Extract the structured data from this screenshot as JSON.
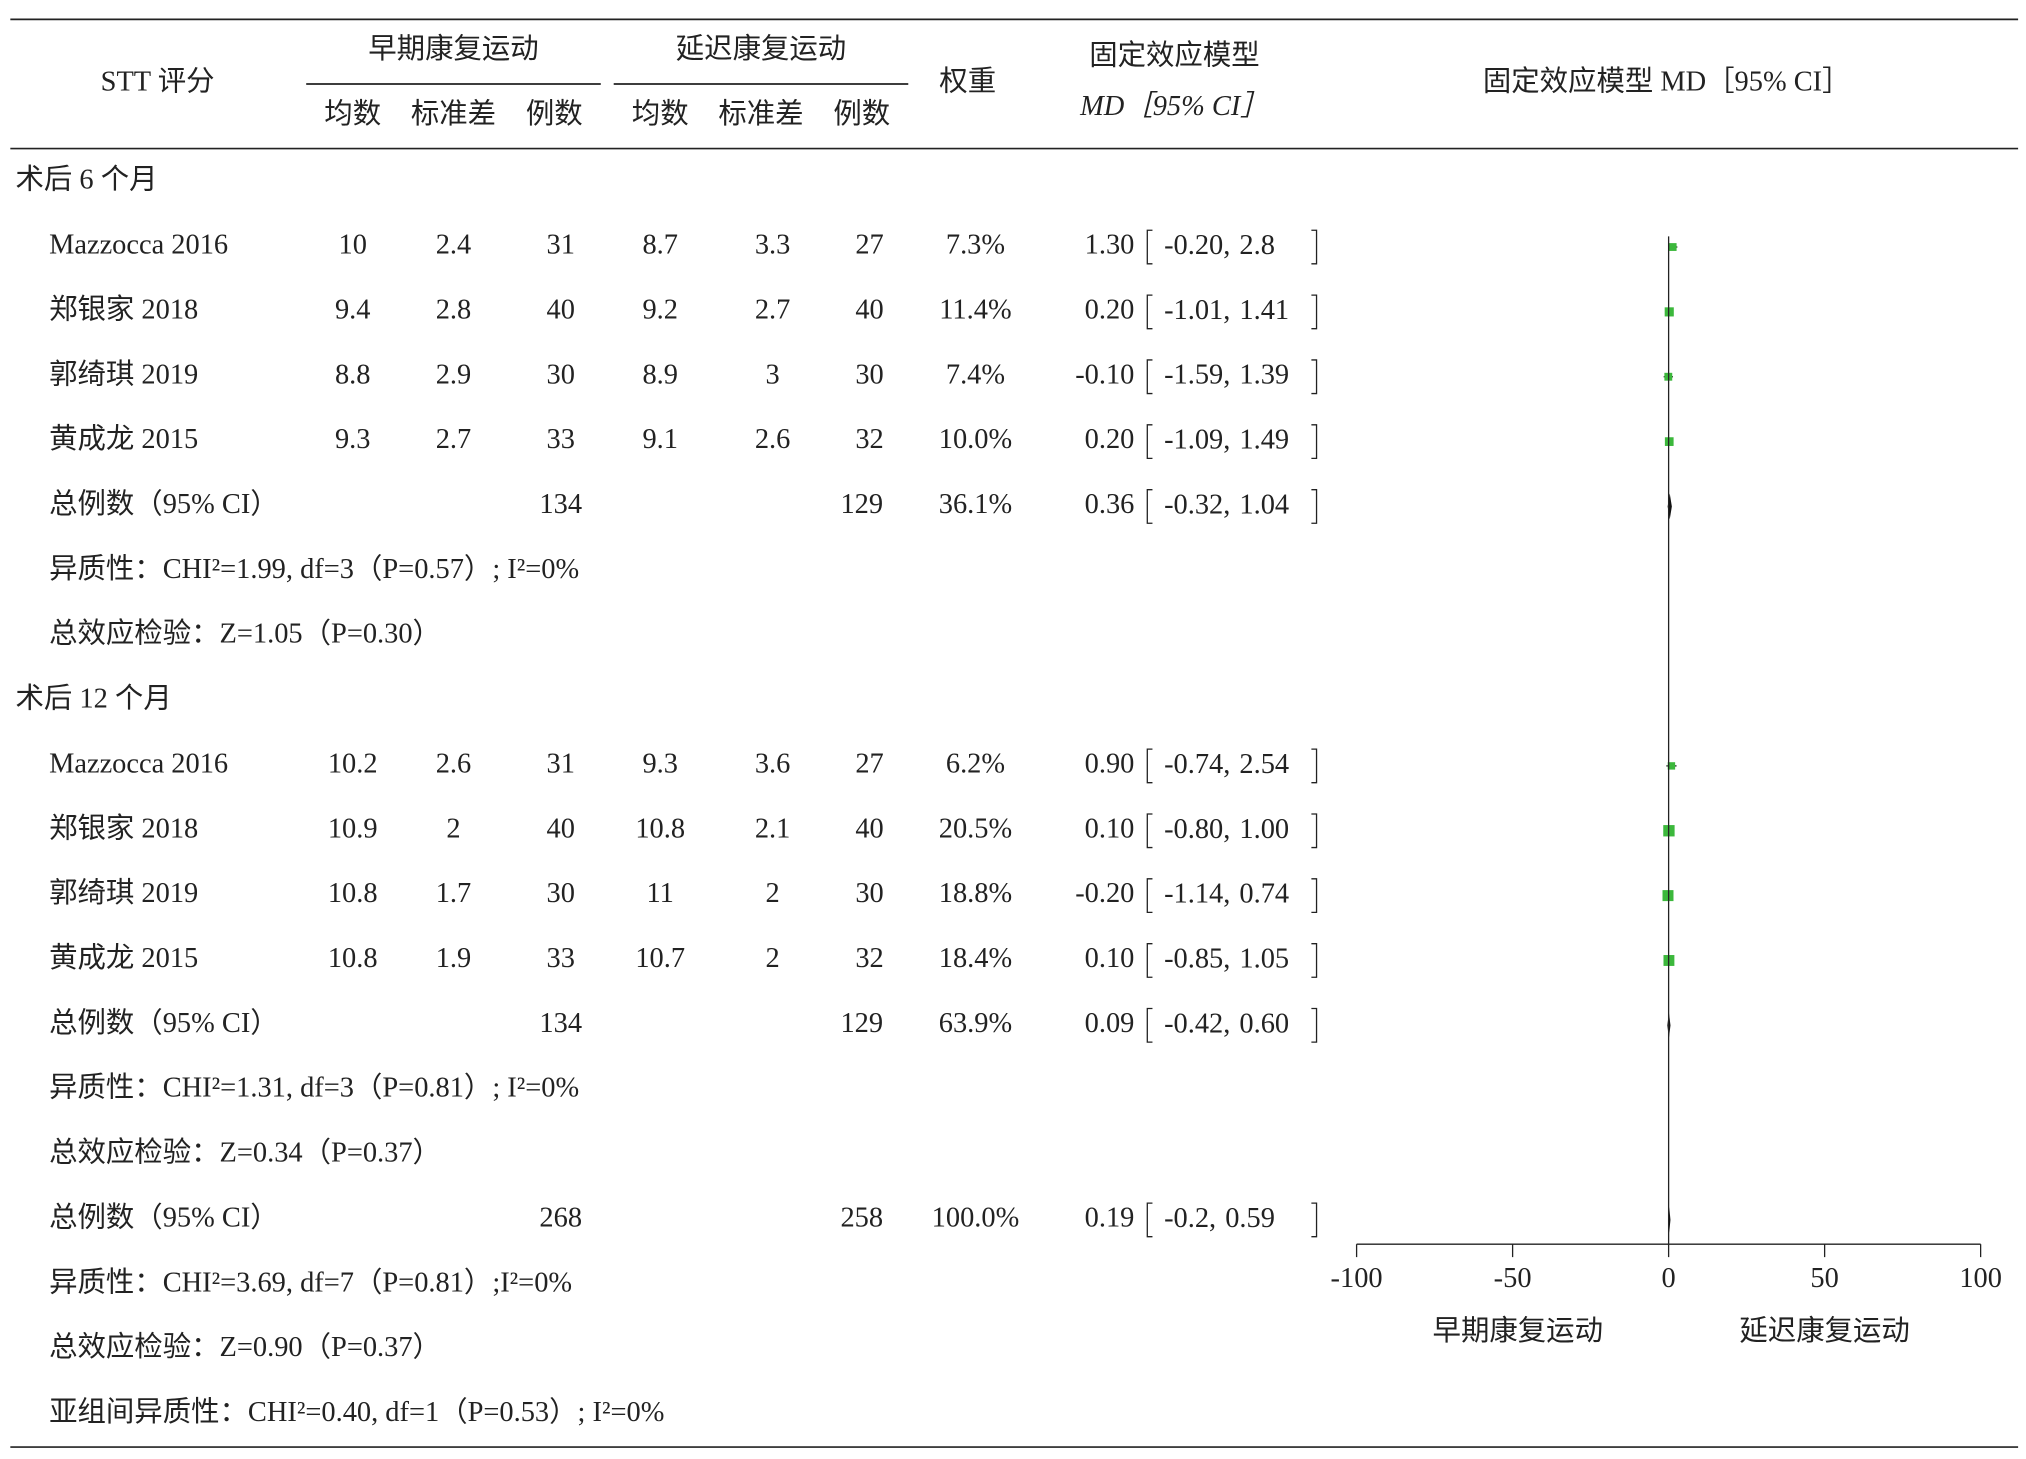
{
  "header": {
    "study": "STT 评分",
    "early": "早期康复运动",
    "late": "延迟康复运动",
    "columns": [
      "均数",
      "标准差",
      "例数"
    ],
    "weight": "权重",
    "model": "固定效应模型",
    "model_sub": "MD［95% CI］",
    "plot_title": "固定效应模型 MD［95% CI］"
  },
  "groups": [
    {
      "label": "术后 6 个月",
      "studies": [
        {
          "name": "Mazzocca 2016",
          "early": [
            10,
            2.4,
            31
          ],
          "late": [
            8.7,
            3.3,
            27
          ],
          "weight": {
            "value": 7.3,
            "label": "7.3%"
          },
          "md": {
            "value": 1.3,
            "label": "1.30"
          },
          "ci": [
            {
              "value": -0.2,
              "label": "-0.20,"
            },
            2.8
          ]
        },
        {
          "name": "郑银家 2018",
          "early": [
            9.4,
            2.8,
            40
          ],
          "late": [
            9.2,
            2.7,
            40
          ],
          "weight": {
            "value": 11.4,
            "label": "11.4%"
          },
          "md": {
            "value": 0.2,
            "label": "0.20"
          },
          "ci": [
            {
              "value": -1.01,
              "label": "-1.01,"
            },
            1.41
          ]
        },
        {
          "name": "郭绮琪 2019",
          "early": [
            8.8,
            2.9,
            30
          ],
          "late": [
            8.9,
            3,
            30
          ],
          "weight": {
            "value": 7.4,
            "label": "7.4%"
          },
          "md": {
            "value": -0.1,
            "label": "-0.10"
          },
          "ci": [
            {
              "value": -1.59,
              "label": "-1.59,"
            },
            1.39
          ]
        },
        {
          "name": "黄成龙 2015",
          "early": [
            9.3,
            2.7,
            33
          ],
          "late": [
            9.1,
            2.6,
            32
          ],
          "weight": {
            "value": 10,
            "label": "10.0%"
          },
          "md": {
            "value": 0.2,
            "label": "0.20"
          },
          "ci": [
            {
              "value": -1.09,
              "label": "-1.09,"
            },
            1.49
          ]
        }
      ],
      "total": {
        "name": "总例数（95% CI）",
        "n": [
          134,
          129
        ],
        "weight": {
          "value": 36.1,
          "label": "36.1%"
        },
        "md": 0.36,
        "ci": [
          {
            "value": -0.32,
            "label": "-0.32,"
          },
          1.04
        ]
      },
      "heterogeneity": "异质性：CHI²=1.99, df=3（P=0.57）; I²=0%",
      "effect": "总效应检验：Z=1.05（P=0.30）"
    },
    {
      "label": "术后 12 个月",
      "studies": [
        {
          "name": "Mazzocca 2016",
          "early": [
            10.2,
            2.6,
            31
          ],
          "late": [
            9.3,
            3.6,
            27
          ],
          "weight": {
            "value": 6.2,
            "label": "6.2%"
          },
          "md": {
            "value": 0.9,
            "label": "0.90"
          },
          "ci": [
            {
              "value": -0.74,
              "label": "-0.74,"
            },
            2.54
          ]
        },
        {
          "name": "郑银家 2018",
          "early": [
            10.9,
            2,
            40
          ],
          "late": [
            10.8,
            2.1,
            40
          ],
          "weight": {
            "value": 20.5,
            "label": "20.5%"
          },
          "md": {
            "value": 0.1,
            "label": "0.10"
          },
          "ci": [
            {
              "value": -0.8,
              "label": "-0.80,"
            },
            {
              "value": 1,
              "label": "1.00"
            }
          ]
        },
        {
          "name": "郭绮琪 2019",
          "early": [
            10.8,
            1.7,
            30
          ],
          "late": [
            11,
            2,
            30
          ],
          "weight": {
            "value": 18.8,
            "label": "18.8%"
          },
          "md": {
            "value": -0.2,
            "label": "-0.20"
          },
          "ci": [
            {
              "value": -1.14,
              "label": "-1.14,"
            },
            0.74
          ]
        },
        {
          "name": "黄成龙 2015",
          "early": [
            10.8,
            1.9,
            33
          ],
          "late": [
            10.7,
            2,
            32
          ],
          "weight": {
            "value": 18.4,
            "label": "18.4%"
          },
          "md": {
            "value": 0.1,
            "label": "0.10"
          },
          "ci": [
            {
              "value": -0.85,
              "label": "-0.85,"
            },
            1.05
          ]
        }
      ],
      "total": {
        "name": "总例数（95% CI）",
        "n": [
          134,
          129
        ],
        "weight": {
          "value": 63.9,
          "label": "63.9%"
        },
        "md": 0.09,
        "ci": [
          {
            "value": -0.42,
            "label": "-0.42,"
          },
          {
            "value": 0.6,
            "label": "0.60"
          }
        ]
      },
      "heterogeneity": "异质性：CHI²=1.31, df=3（P=0.81）; I²=0%",
      "effect": "总效应检验：Z=0.34（P=0.37）"
    }
  ],
  "overall": {
    "name": "总例数（95% CI）",
    "n": [
      268,
      258
    ],
    "weight": {
      "value": 100,
      "label": "100.0%"
    },
    "md": 0.19,
    "ci": [
      {
        "value": -0.2,
        "label": "-0.2,"
      },
      0.59
    ],
    "heterogeneity": "异质性：CHI²=3.69, df=7（P=0.81）;I²=0%",
    "effect": "总效应检验：Z=0.90（P=0.37）",
    "subgroup": "亚组间异质性：CHI²=0.40, df=1（P=0.53）; I²=0%"
  },
  "plot": {
    "xlim": [
      -100,
      100
    ],
    "xticks": [
      -100,
      -50,
      0,
      50,
      100
    ],
    "xlabels": [
      "早期康复运动",
      "延迟康复运动"
    ],
    "color": "#3cb83c"
  }
}
